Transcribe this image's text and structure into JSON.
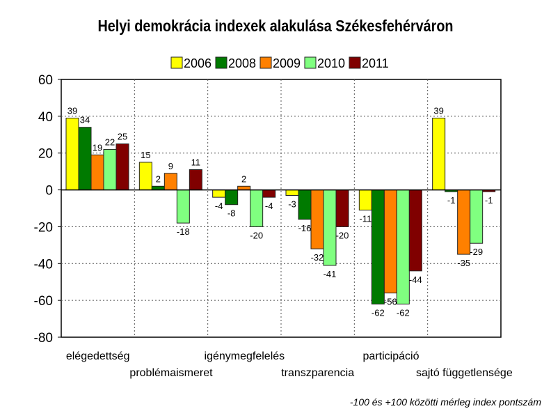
{
  "chart_data": {
    "type": "bar",
    "title": "Helyi demokrácia indexek alakulása Székesfehérváron",
    "footnote": "-100 és +100 közötti mérleg index pontszám",
    "xlabel": "",
    "ylabel": "",
    "ylim": [
      -80,
      60
    ],
    "yticks": [
      60,
      40,
      20,
      0,
      -20,
      -40,
      -60,
      -80
    ],
    "grid": true,
    "legend_position": "top",
    "categories": [
      "elégedettség",
      "problémaismeret",
      "igénymegfelelés",
      "transzparencia",
      "participáció",
      "sajtó függetlensége"
    ],
    "series": [
      {
        "name": "2006",
        "color": "#ffff00",
        "values": [
          39,
          15,
          -4,
          -3,
          -11,
          39
        ]
      },
      {
        "name": "2008",
        "color": "#007a00",
        "values": [
          34,
          2,
          -8,
          -16,
          -62,
          -1
        ]
      },
      {
        "name": "2009",
        "color": "#ff8000",
        "values": [
          19,
          9,
          2,
          -32,
          -56,
          -35
        ]
      },
      {
        "name": "2010",
        "color": "#80ff80",
        "values": [
          22,
          -18,
          -20,
          -41,
          -62,
          -29
        ]
      },
      {
        "name": "2011",
        "color": "#800000",
        "values": [
          25,
          11,
          -4,
          -20,
          -44,
          -1
        ]
      }
    ]
  }
}
